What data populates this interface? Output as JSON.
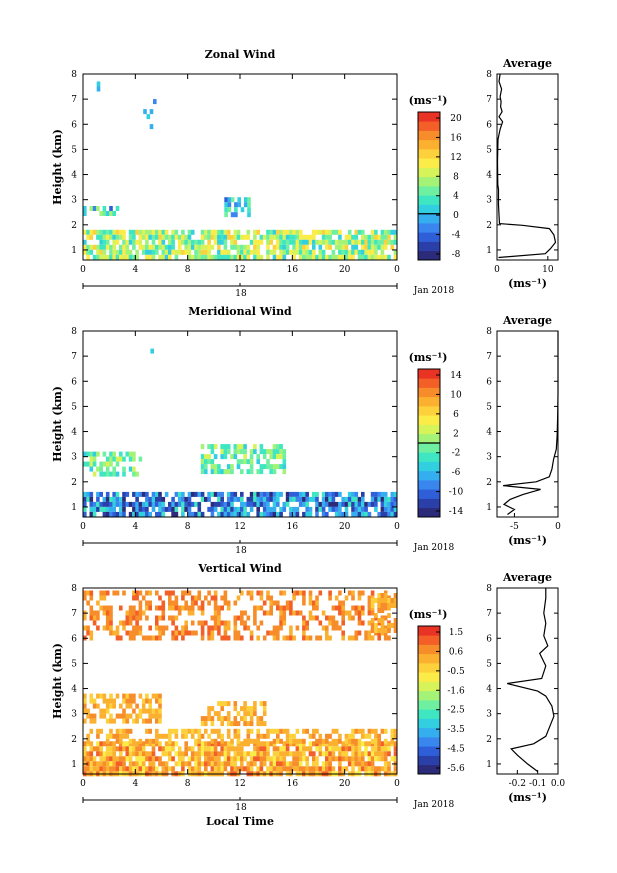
{
  "colors": [
    "#2c2b7a",
    "#2a3fa8",
    "#2f5fd8",
    "#3a86ef",
    "#35aef0",
    "#31cfe0",
    "#3ee6c2",
    "#6ff0a0",
    "#a4f377",
    "#d6f45a",
    "#fbec48",
    "#fdd13b",
    "#fbb030",
    "#f78c2a",
    "#f35f27",
    "#e93325"
  ],
  "chart_data": [
    {
      "type": "heatmap",
      "title": "Zonal Wind",
      "xlabel": "",
      "ylabel": "Height (km)",
      "date_label": "Jan 2018",
      "date_tick": "18",
      "xlim": [
        0,
        24
      ],
      "ylim": [
        0.6,
        8
      ],
      "x_ticks": [
        "0",
        "4",
        "8",
        "12",
        "16",
        "20",
        "0"
      ],
      "y_ticks": [
        "1",
        "2",
        "3",
        "4",
        "5",
        "6",
        "7",
        "8"
      ],
      "colorbar": {
        "unit": "(ms⁻¹)",
        "ticks": [
          "20",
          "16",
          "12",
          "8",
          "4",
          "0",
          "-4",
          "-8"
        ],
        "range": [
          -10,
          22
        ],
        "contour_at": 0
      },
      "regions": [
        {
          "x": [
            0,
            24
          ],
          "y": [
            0.7,
            1.8
          ],
          "value": 7,
          "density": 0.75,
          "spread": 3
        },
        {
          "x": [
            0,
            3.4
          ],
          "y": [
            2.35,
            2.75
          ],
          "value": 0,
          "density": 0.7,
          "spread": 3
        },
        {
          "x": [
            10.8,
            12.8
          ],
          "y": [
            2.35,
            3.1
          ],
          "value": 0,
          "density": 0.6,
          "spread": 3
        },
        {
          "x": [
            4.6,
            5.4
          ],
          "y": [
            5.8,
            7.2
          ],
          "value": -2,
          "density": 0.3,
          "spread": 1
        },
        {
          "x": [
            0.3,
            1.5
          ],
          "y": [
            7.2,
            7.9
          ],
          "value": -2,
          "density": 0.25,
          "spread": 1
        }
      ],
      "profile": {
        "title": "Average",
        "xlabel": "(ms⁻¹)",
        "xlim": [
          0,
          12
        ],
        "x_ticks": [
          "0",
          "10"
        ],
        "points": [
          [
            0.3,
            0.7
          ],
          [
            9.5,
            0.85
          ],
          [
            10.5,
            1.05
          ],
          [
            11.5,
            1.3
          ],
          [
            11.2,
            1.6
          ],
          [
            10.3,
            1.85
          ],
          [
            5,
            1.98
          ],
          [
            0.5,
            2.05
          ],
          [
            0.4,
            2.4
          ],
          [
            0.3,
            2.8
          ],
          [
            0.3,
            3.4
          ],
          [
            0.15,
            3.6
          ],
          [
            0.1,
            4.5
          ],
          [
            0.2,
            5.4
          ],
          [
            0.6,
            5.8
          ],
          [
            1.1,
            6.1
          ],
          [
            0.4,
            6.3
          ],
          [
            1.0,
            6.5
          ],
          [
            0.7,
            6.7
          ],
          [
            0.8,
            6.9
          ],
          [
            0.6,
            7.1
          ],
          [
            0.9,
            7.4
          ],
          [
            0.4,
            7.7
          ],
          [
            0.6,
            8.0
          ]
        ]
      }
    },
    {
      "type": "heatmap",
      "title": "Meridional Wind",
      "xlabel": "",
      "ylabel": "Height (km)",
      "date_label": "Jan 2018",
      "date_tick": "18",
      "xlim": [
        0,
        24
      ],
      "ylim": [
        0.6,
        8
      ],
      "x_ticks": [
        "0",
        "4",
        "8",
        "12",
        "16",
        "20",
        "0"
      ],
      "y_ticks": [
        "1",
        "2",
        "3",
        "4",
        "5",
        "6",
        "7",
        "8"
      ],
      "colorbar": {
        "unit": "(ms⁻¹)",
        "ticks": [
          "14",
          "10",
          "6",
          "2",
          "-2",
          "-6",
          "-10",
          "-14"
        ],
        "range": [
          -16,
          16
        ],
        "contour_at": 0
      },
      "regions": [
        {
          "x": [
            0,
            24
          ],
          "y": [
            0.65,
            1.6
          ],
          "value": -9,
          "density": 0.75,
          "spread": 3
        },
        {
          "x": [
            0,
            4.5
          ],
          "y": [
            2.3,
            3.2
          ],
          "value": -2,
          "density": 0.6,
          "spread": 2
        },
        {
          "x": [
            9,
            15.5
          ],
          "y": [
            2.3,
            3.5
          ],
          "value": -2,
          "density": 0.6,
          "spread": 2
        },
        {
          "x": [
            4.9,
            5.2
          ],
          "y": [
            6.8,
            7.3
          ],
          "value": -4,
          "density": 0.5,
          "spread": 1
        }
      ],
      "profile": {
        "title": "Average",
        "xlabel": "(ms⁻¹)",
        "xlim": [
          -7,
          0
        ],
        "x_ticks": [
          "-5",
          "0"
        ],
        "points": [
          [
            -5.8,
            0.7
          ],
          [
            -5.0,
            0.9
          ],
          [
            -6.2,
            1.1
          ],
          [
            -5.5,
            1.3
          ],
          [
            -4.0,
            1.5
          ],
          [
            -2.0,
            1.7
          ],
          [
            -6.3,
            1.85
          ],
          [
            -2.5,
            2.0
          ],
          [
            -1.0,
            2.2
          ],
          [
            -0.7,
            2.5
          ],
          [
            -0.5,
            2.9
          ],
          [
            -0.2,
            3.3
          ],
          [
            -0.1,
            3.8
          ],
          [
            -0.05,
            4.5
          ],
          [
            0,
            5.5
          ],
          [
            0,
            8.0
          ]
        ]
      }
    },
    {
      "type": "heatmap",
      "title": "Vertical Wind",
      "xlabel": "Local Time",
      "ylabel": "Height (km)",
      "date_label": "Jan 2018",
      "date_tick": "18",
      "xlim": [
        0,
        24
      ],
      "ylim": [
        0.6,
        8
      ],
      "x_ticks": [
        "0",
        "4",
        "8",
        "12",
        "16",
        "20",
        "0"
      ],
      "y_ticks": [
        "1",
        "2",
        "3",
        "4",
        "5",
        "6",
        "7",
        "8"
      ],
      "colorbar": {
        "unit": "(ms⁻¹)",
        "ticks": [
          "1.5",
          "0.6",
          "-0.5",
          "-1.6",
          "-2.5",
          "-3.5",
          "-4.5",
          "-5.6"
        ],
        "range": [
          -6.2,
          2.0
        ],
        "contour_at": null
      },
      "regions": [
        {
          "x": [
            0,
            24
          ],
          "y": [
            0.6,
            1.9
          ],
          "value": 0.2,
          "density": 0.85,
          "spread": 2
        },
        {
          "x": [
            0,
            24
          ],
          "y": [
            1.9,
            2.4
          ],
          "value": 0.6,
          "density": 0.55,
          "spread": 1
        },
        {
          "x": [
            0,
            6
          ],
          "y": [
            2.6,
            3.8
          ],
          "value": 0.6,
          "density": 0.65,
          "spread": 1
        },
        {
          "x": [
            9,
            14
          ],
          "y": [
            2.6,
            3.5
          ],
          "value": 0.6,
          "density": 0.6,
          "spread": 1
        },
        {
          "x": [
            0,
            23.5
          ],
          "y": [
            6.0,
            7.9
          ],
          "value": 0.9,
          "density": 0.45,
          "spread": 1
        },
        {
          "x": [
            22,
            24
          ],
          "y": [
            6.3,
            7.8
          ],
          "value": 0.1,
          "density": 0.6,
          "spread": 1
        }
      ],
      "profile": {
        "title": "Average",
        "xlabel": "(ms⁻¹)",
        "xlim": [
          -0.3,
          0.0
        ],
        "x_ticks": [
          "-0.2",
          "-0.1",
          "0.0"
        ],
        "points": [
          [
            -0.1,
            0.7
          ],
          [
            -0.15,
            1.0
          ],
          [
            -0.2,
            1.35
          ],
          [
            -0.23,
            1.6
          ],
          [
            -0.12,
            1.8
          ],
          [
            -0.06,
            2.1
          ],
          [
            -0.04,
            2.5
          ],
          [
            -0.02,
            2.9
          ],
          [
            -0.03,
            3.3
          ],
          [
            -0.06,
            3.7
          ],
          [
            -0.1,
            3.9
          ],
          [
            -0.25,
            4.2
          ],
          [
            -0.08,
            4.4
          ],
          [
            -0.06,
            4.9
          ],
          [
            -0.09,
            5.4
          ],
          [
            -0.05,
            5.7
          ],
          [
            -0.07,
            6.1
          ],
          [
            -0.06,
            6.6
          ],
          [
            -0.07,
            7.0
          ],
          [
            -0.06,
            7.6
          ],
          [
            -0.06,
            8.0
          ]
        ]
      }
    }
  ]
}
